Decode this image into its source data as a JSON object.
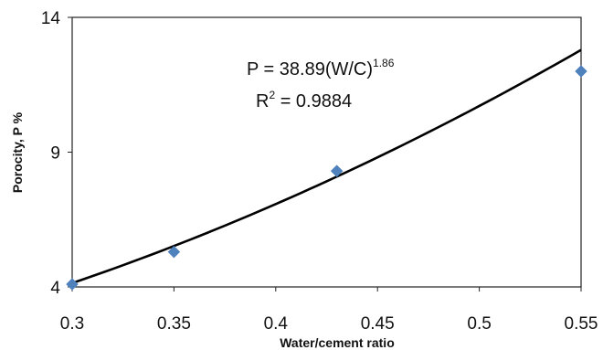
{
  "chart_data": {
    "type": "scatter",
    "title": "",
    "xlabel": "Water/cement ratio",
    "ylabel": "Porocity, P %",
    "xlim": [
      0.3,
      0.55
    ],
    "ylim": [
      4,
      14
    ],
    "x_ticks": [
      "0.3",
      "0.35",
      "0.4",
      "0.45",
      "0.5",
      "0.55"
    ],
    "y_ticks": [
      "4",
      "9",
      "14"
    ],
    "grid": false,
    "legend": "none",
    "series": [
      {
        "marker": "diamond",
        "color": "#4f81bd",
        "points": [
          {
            "x": 0.3,
            "y": 4.1
          },
          {
            "x": 0.35,
            "y": 5.3
          },
          {
            "x": 0.43,
            "y": 8.3
          },
          {
            "x": 0.55,
            "y": 12.0
          }
        ]
      }
    ],
    "trendline": {
      "type": "power",
      "coefficient": 38.89,
      "exponent": 1.86,
      "color": "#000000",
      "equation_prefix": "P = 38.89(W/C)",
      "equation_exponent": "1.86",
      "r2_prefix": "R",
      "r2_sup": "2",
      "r2_suffix": " = 0.9884"
    }
  }
}
